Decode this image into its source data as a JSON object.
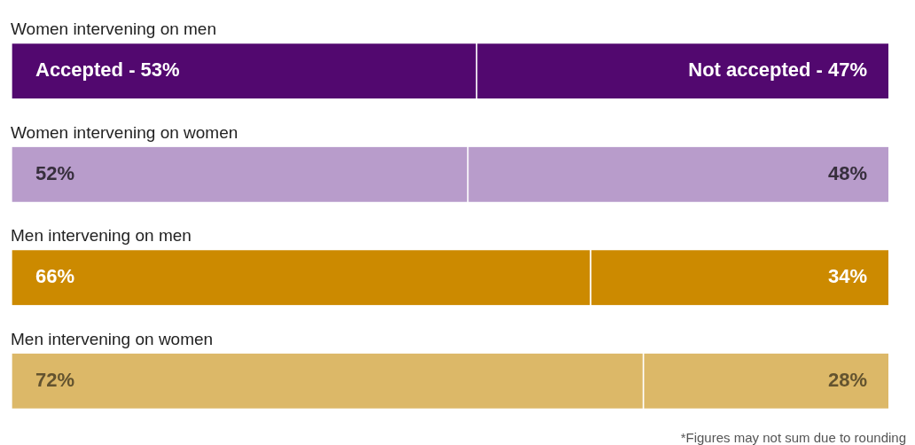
{
  "chart_data": {
    "type": "bar",
    "orientation": "horizontal",
    "stacked": true,
    "legend": false,
    "categories": [
      "Women intervening on men",
      "Women intervening on women",
      "Men intervening on men",
      "Men intervening on women"
    ],
    "series": [
      {
        "name": "Accepted -",
        "colors": [
          "#52086f",
          "#b89ccb",
          "#cc8a00",
          "#dcb868"
        ],
        "values": [
          53,
          52,
          66,
          72
        ],
        "value_labels": [
          "53%",
          "52%",
          "66%",
          "72%"
        ]
      },
      {
        "name": "Not accepted -",
        "colors": [
          "#52086f",
          "#b89ccb",
          "#cc8a00",
          "#dcb868"
        ],
        "values": [
          47,
          48,
          34,
          28
        ],
        "value_labels": [
          "47%",
          "48%",
          "34%",
          "28%"
        ]
      }
    ],
    "annotations": [
      "*Figures may not sum due to rounding"
    ]
  }
}
